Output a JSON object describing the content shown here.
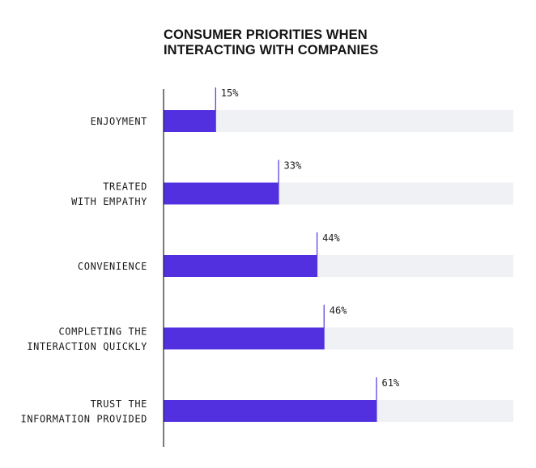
{
  "chart_data": {
    "type": "bar",
    "orientation": "horizontal",
    "title_lines": [
      "CONSUMER PRIORITIES WHEN",
      "INTERACTING WITH COMPANIES"
    ],
    "categories": [
      [
        "ENJOYMENT"
      ],
      [
        "TREATED",
        "WITH EMPATHY"
      ],
      [
        "CONVENIENCE"
      ],
      [
        "COMPLETING THE",
        "INTERACTION QUICKLY"
      ],
      [
        "TRUST THE",
        "INFORMATION PROVIDED"
      ]
    ],
    "values": [
      15,
      33,
      44,
      46,
      61
    ],
    "value_labels": [
      "15%",
      "33%",
      "44%",
      "46%",
      "61%"
    ],
    "xlim": [
      0,
      100
    ],
    "unit": "%",
    "grid": false,
    "colors": {
      "bar": "#5230df",
      "track": "#f0f1f4",
      "axis": "#222222",
      "text": "#1a1a1a"
    }
  }
}
